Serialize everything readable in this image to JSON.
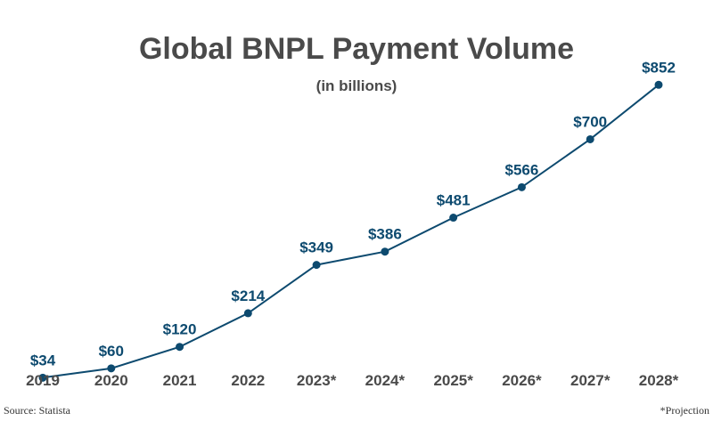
{
  "chart_data": {
    "type": "line",
    "title": "Global BNPL Payment Volume",
    "subtitle": "(in billions)",
    "categories": [
      "2019",
      "2020",
      "2021",
      "2022",
      "2023*",
      "2024*",
      "2025*",
      "2026*",
      "2027*",
      "2028*"
    ],
    "values": [
      34,
      60,
      120,
      214,
      349,
      386,
      481,
      566,
      700,
      852
    ],
    "data_labels": [
      "$34",
      "$60",
      "$120",
      "$214",
      "$349",
      "$386",
      "$481",
      "$566",
      "$700",
      "$852"
    ],
    "xlabel": "",
    "ylabel": "",
    "ylim": [
      0,
      900
    ],
    "grid": false,
    "legend": "none",
    "line_color": "#0d4a6f",
    "title_color": "#4a4a4a"
  },
  "footer": {
    "source": "Source: Statista",
    "note": "*Projection"
  }
}
